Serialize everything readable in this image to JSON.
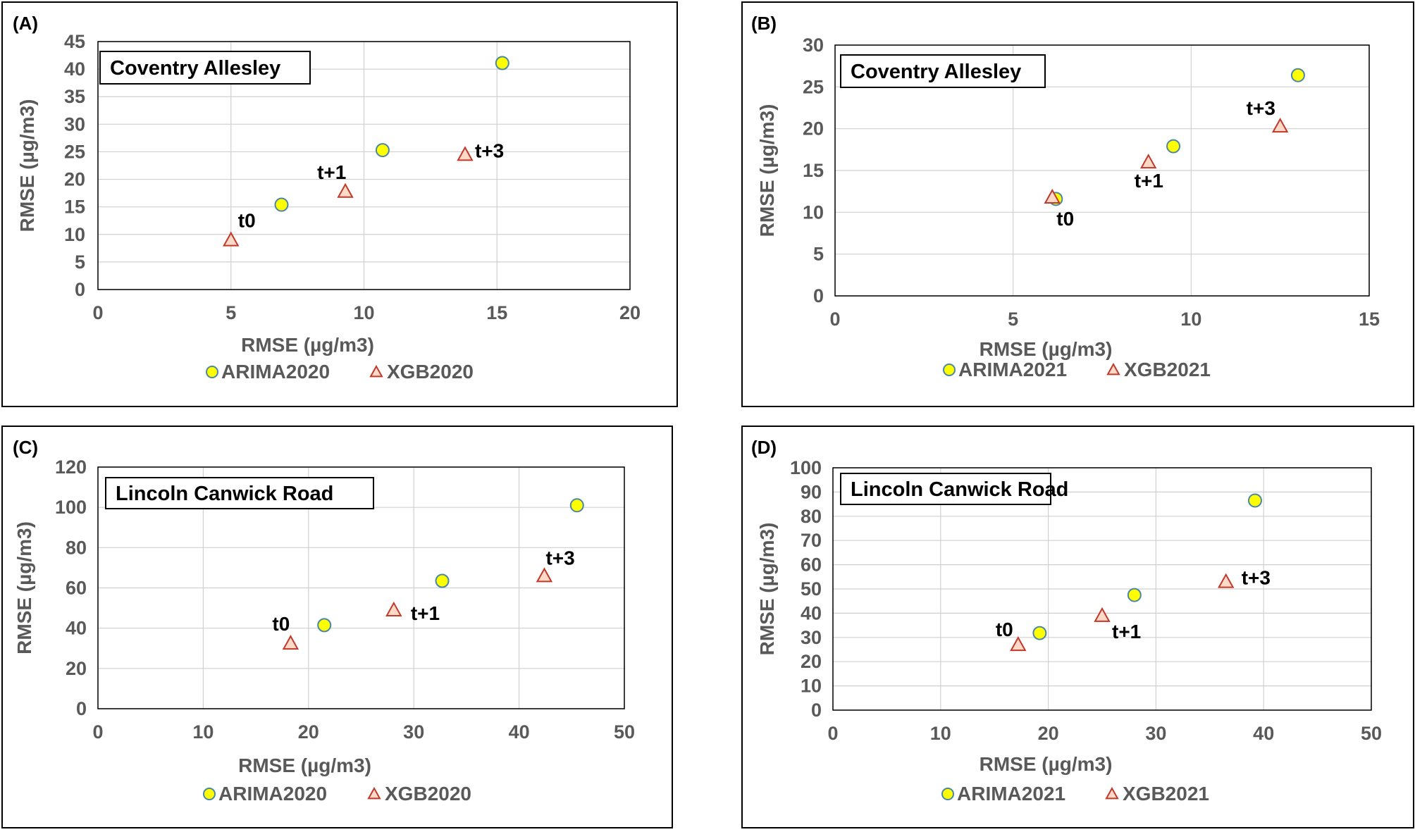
{
  "colors": {
    "arima_fill": "#ffff00",
    "arima_stroke": "#4a86a8",
    "xgb_fill": "#ffd9c7",
    "xgb_stroke": "#c0392b",
    "grid": "#d0d0d0",
    "axis_text": "#595959"
  },
  "chart_data": [
    {
      "panel": "(A)",
      "type": "scatter",
      "site": "Coventry Allesley",
      "xlabel": "RMSE (µg/m3)",
      "ylabel": "RMSE (µg/m3)",
      "xlim": [
        0,
        20
      ],
      "xticks": [
        0,
        5,
        10,
        15,
        20
      ],
      "ylim": [
        0,
        45
      ],
      "yticks": [
        0,
        5,
        10,
        15,
        20,
        25,
        30,
        35,
        40,
        45
      ],
      "grid": true,
      "legend_position": "bottom",
      "series": [
        {
          "name": "ARIMA2020",
          "marker": "circle",
          "points": [
            {
              "x": 6.9,
              "y": 15.4
            },
            {
              "x": 10.7,
              "y": 25.3
            },
            {
              "x": 15.2,
              "y": 41.1
            }
          ]
        },
        {
          "name": "XGB2020",
          "marker": "triangle",
          "points": [
            {
              "x": 5.0,
              "y": 9.0,
              "label": "t0"
            },
            {
              "x": 9.3,
              "y": 17.8,
              "label": "t+1"
            },
            {
              "x": 13.8,
              "y": 24.5,
              "label": "t+3"
            }
          ]
        }
      ]
    },
    {
      "panel": "(B)",
      "type": "scatter",
      "site": "Coventry Allesley",
      "xlabel": "RMSE (µg/m3)",
      "ylabel": "RMSE (µg/m3)",
      "xlim": [
        0,
        15
      ],
      "xticks": [
        0,
        5,
        10,
        15
      ],
      "ylim": [
        0,
        30
      ],
      "yticks": [
        0,
        5,
        10,
        15,
        20,
        25,
        30
      ],
      "grid": true,
      "legend_position": "bottom",
      "series": [
        {
          "name": "ARIMA2021",
          "marker": "circle",
          "points": [
            {
              "x": 6.2,
              "y": 11.6
            },
            {
              "x": 9.5,
              "y": 17.9
            },
            {
              "x": 13.0,
              "y": 26.4
            }
          ]
        },
        {
          "name": "XGB2021",
          "marker": "triangle",
          "points": [
            {
              "x": 6.1,
              "y": 11.8,
              "label": "t0"
            },
            {
              "x": 8.8,
              "y": 16.0,
              "label": "t+1"
            },
            {
              "x": 12.5,
              "y": 20.3,
              "label": "t+3"
            }
          ]
        }
      ]
    },
    {
      "panel": "(C)",
      "type": "scatter",
      "site": "Lincoln Canwick Road",
      "xlabel": "RMSE (µg/m3)",
      "ylabel": "RMSE (µg/m3)",
      "xlim": [
        0,
        50
      ],
      "xticks": [
        0,
        10,
        20,
        30,
        40,
        50
      ],
      "ylim": [
        0,
        120
      ],
      "yticks": [
        0,
        20,
        40,
        60,
        80,
        100,
        120
      ],
      "grid": true,
      "legend_position": "bottom",
      "series": [
        {
          "name": "ARIMA2020",
          "marker": "circle",
          "points": [
            {
              "x": 21.5,
              "y": 41.5
            },
            {
              "x": 32.7,
              "y": 63.5
            },
            {
              "x": 45.5,
              "y": 101.0
            }
          ]
        },
        {
          "name": "XGB2020",
          "marker": "triangle",
          "points": [
            {
              "x": 18.3,
              "y": 32.5,
              "label": "t0"
            },
            {
              "x": 28.1,
              "y": 49.0,
              "label": "t+1"
            },
            {
              "x": 42.4,
              "y": 66.0,
              "label": "t+3"
            }
          ]
        }
      ]
    },
    {
      "panel": "(D)",
      "type": "scatter",
      "site": "Lincoln Canwick Road",
      "xlabel": "RMSE (µg/m3)",
      "ylabel": "RMSE (µg/m3)",
      "xlim": [
        0,
        50
      ],
      "xticks": [
        0,
        10,
        20,
        30,
        40,
        50
      ],
      "ylim": [
        0,
        100
      ],
      "yticks": [
        0,
        10,
        20,
        30,
        40,
        50,
        60,
        70,
        80,
        90,
        100
      ],
      "grid": true,
      "legend_position": "bottom",
      "series": [
        {
          "name": "ARIMA2021",
          "marker": "circle",
          "points": [
            {
              "x": 19.2,
              "y": 31.8
            },
            {
              "x": 28.0,
              "y": 47.5
            },
            {
              "x": 39.2,
              "y": 86.5
            }
          ]
        },
        {
          "name": "XGB2021",
          "marker": "triangle",
          "points": [
            {
              "x": 17.2,
              "y": 27.0,
              "label": "t0"
            },
            {
              "x": 25.0,
              "y": 39.0,
              "label": "t+1"
            },
            {
              "x": 36.5,
              "y": 53.0,
              "label": "t+3"
            }
          ]
        }
      ]
    }
  ]
}
